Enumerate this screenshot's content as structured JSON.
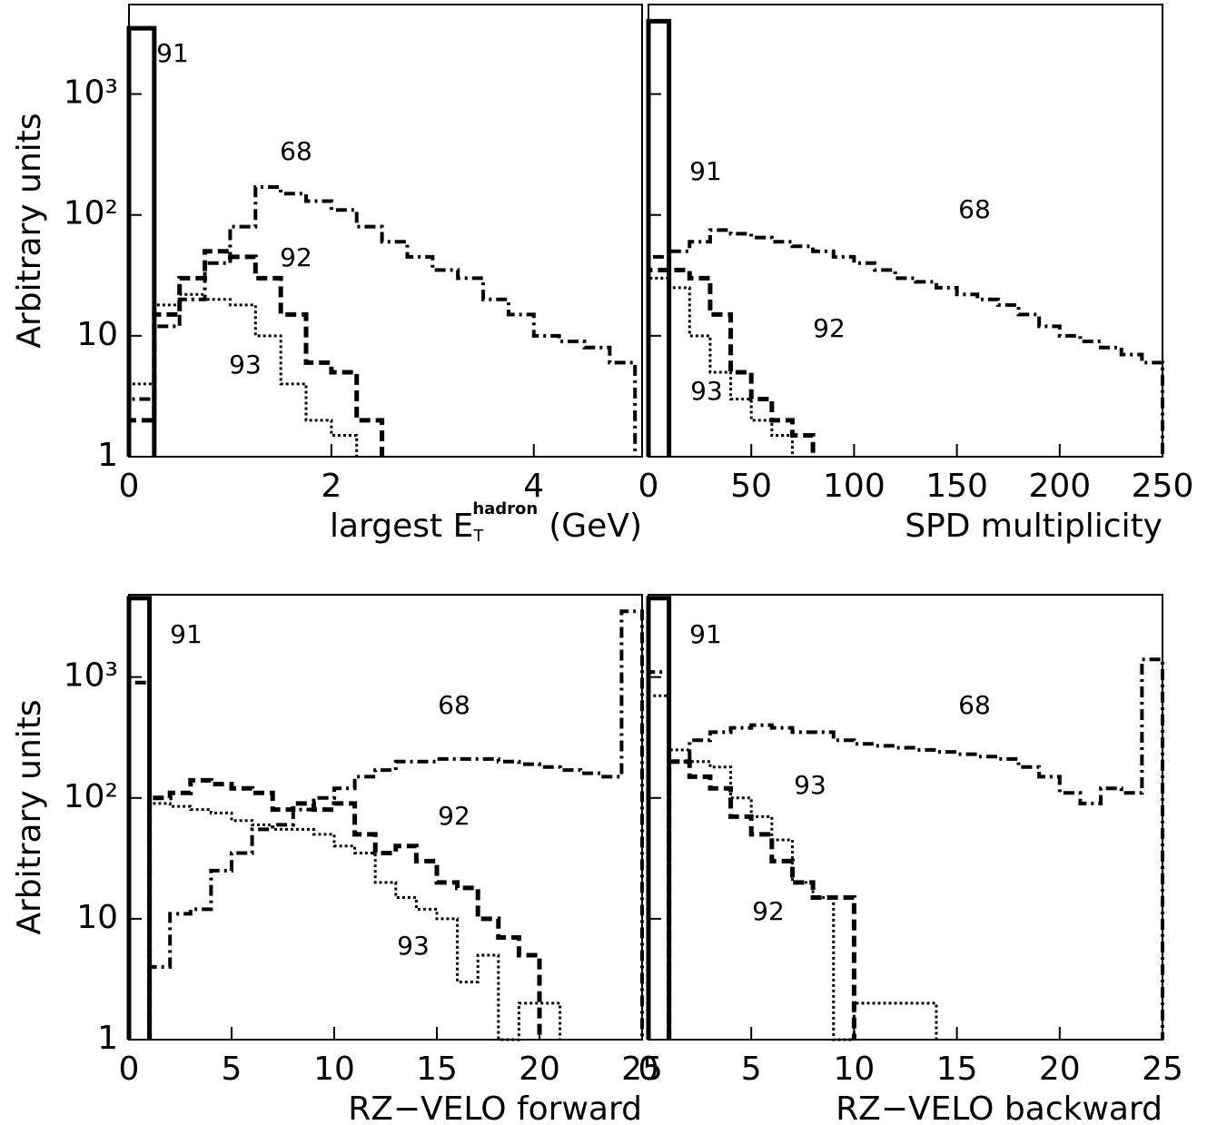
{
  "chart_data": [
    {
      "type": "histogram",
      "ylabel": "Arbitrary units",
      "xlabel": {
        "text": "largest E",
        "sub": "T",
        "sup": "hadron",
        "tail": "(GeV)"
      },
      "xlim": [
        0,
        5.07
      ],
      "xticks": [
        0,
        2,
        4
      ],
      "ylim": [
        1,
        5500
      ],
      "log_y": true,
      "ytick_labels": true,
      "yticks": [
        1,
        10,
        {
          "value": 100,
          "label": "10²"
        },
        {
          "value": 1000,
          "label": "10³"
        }
      ],
      "bins": [
        0,
        0.25,
        0.5,
        0.75,
        1,
        1.25,
        1.5,
        1.75,
        2,
        2.25,
        2.5,
        2.75,
        3,
        3.25,
        3.5,
        3.75,
        4,
        4.25,
        4.5,
        4.75,
        5
      ],
      "series": [
        {
          "name": "91",
          "style": "solid",
          "values": [
            3500,
            null,
            null,
            null,
            null,
            null,
            null,
            null,
            null,
            null,
            null,
            null,
            null,
            null,
            null,
            null,
            null,
            null,
            null,
            null
          ]
        },
        {
          "name": "68",
          "style": "dashdot",
          "values": [
            3,
            12,
            20,
            40,
            80,
            170,
            150,
            130,
            110,
            80,
            60,
            45,
            35,
            30,
            20,
            15,
            10,
            9,
            8,
            6
          ]
        },
        {
          "name": "92",
          "style": "dashed",
          "values": [
            2,
            15,
            30,
            50,
            45,
            30,
            15,
            6,
            5,
            2,
            null,
            null,
            null,
            null,
            null,
            null,
            null,
            null,
            null,
            null
          ]
        },
        {
          "name": "93",
          "style": "dotted",
          "values": [
            4,
            18,
            22,
            20,
            18,
            10,
            4,
            2,
            1.5,
            null,
            null,
            null,
            null,
            null,
            null,
            null,
            null,
            null,
            null,
            null
          ]
        }
      ]
    },
    {
      "type": "histogram",
      "xlabel": "SPD multiplicity",
      "xlim": [
        0,
        250
      ],
      "xticks": [
        0,
        50,
        100,
        150,
        200,
        250
      ],
      "ylim": [
        1,
        5500
      ],
      "log_y": true,
      "ytick_labels": false,
      "yticks": [
        1,
        10,
        100,
        1000
      ],
      "bins": [
        0,
        10,
        20,
        30,
        40,
        50,
        60,
        70,
        80,
        90,
        100,
        110,
        120,
        130,
        140,
        150,
        160,
        170,
        180,
        190,
        200,
        210,
        220,
        230,
        240,
        250
      ],
      "series": [
        {
          "name": "91",
          "style": "solid",
          "values": [
            4000,
            null,
            null,
            null,
            null,
            null,
            null,
            null,
            null,
            null,
            null,
            null,
            null,
            null,
            null,
            null,
            null,
            null,
            null,
            null,
            null,
            null,
            null,
            null,
            null
          ]
        },
        {
          "name": "68",
          "style": "dashdot",
          "values": [
            45,
            50,
            60,
            75,
            70,
            65,
            60,
            55,
            50,
            45,
            40,
            35,
            30,
            28,
            25,
            22,
            20,
            18,
            15,
            12,
            10,
            9,
            8,
            7,
            6
          ]
        },
        {
          "name": "92",
          "style": "dashed",
          "values": [
            35,
            35,
            30,
            15,
            5,
            3,
            2,
            1.5,
            null,
            null,
            null,
            null,
            null,
            null,
            null,
            null,
            null,
            null,
            null,
            null,
            null,
            null,
            null,
            null,
            null
          ]
        },
        {
          "name": "93",
          "style": "dotted",
          "values": [
            30,
            25,
            10,
            5,
            3,
            2,
            1.5,
            null,
            null,
            null,
            null,
            null,
            null,
            null,
            null,
            null,
            null,
            null,
            null,
            null,
            null,
            null,
            null,
            null,
            null
          ]
        }
      ]
    },
    {
      "type": "histogram",
      "ylabel": "Arbitrary units",
      "xlabel": "RZ−VELO forward",
      "xlim": [
        0,
        25
      ],
      "xticks": [
        0,
        5,
        10,
        15,
        20,
        25
      ],
      "ylim": [
        1,
        4800
      ],
      "log_y": true,
      "ytick_labels": true,
      "yticks": [
        1,
        10,
        {
          "value": 100,
          "label": "10²"
        },
        {
          "value": 1000,
          "label": "10³"
        }
      ],
      "bins": [
        0,
        1,
        2,
        3,
        4,
        5,
        6,
        7,
        8,
        9,
        10,
        11,
        12,
        13,
        14,
        15,
        16,
        17,
        18,
        19,
        20,
        21,
        22,
        23,
        24,
        25
      ],
      "series": [
        {
          "name": "91",
          "style": "solid",
          "values": [
            4500,
            null,
            null,
            null,
            null,
            null,
            null,
            null,
            null,
            null,
            null,
            null,
            null,
            null,
            null,
            null,
            null,
            null,
            null,
            null,
            null,
            null,
            null,
            null,
            null
          ]
        },
        {
          "name": "68",
          "style": "dashdot",
          "values": [
            900,
            4,
            11,
            12,
            25,
            35,
            55,
            60,
            80,
            100,
            120,
            150,
            170,
            200,
            200,
            210,
            210,
            210,
            200,
            190,
            180,
            170,
            160,
            150,
            3500
          ]
        },
        {
          "name": "92",
          "style": "dashed",
          "values": [
            null,
            100,
            110,
            140,
            130,
            120,
            110,
            80,
            90,
            80,
            90,
            50,
            35,
            40,
            30,
            20,
            18,
            10,
            7,
            5,
            null,
            null,
            null,
            null,
            null
          ]
        },
        {
          "name": "93",
          "style": "dotted",
          "values": [
            null,
            90,
            85,
            80,
            75,
            65,
            60,
            55,
            55,
            50,
            40,
            35,
            20,
            15,
            12,
            10,
            3,
            5,
            1,
            2,
            2,
            null,
            null,
            null,
            null
          ]
        }
      ]
    },
    {
      "type": "histogram",
      "xlabel": "RZ−VELO backward",
      "xlim": [
        0,
        25
      ],
      "xticks": [
        0,
        5,
        10,
        15,
        20,
        25
      ],
      "ylim": [
        1,
        4800
      ],
      "log_y": true,
      "ytick_labels": false,
      "yticks": [
        1,
        10,
        100,
        1000
      ],
      "bins": [
        0,
        1,
        2,
        3,
        4,
        5,
        6,
        7,
        8,
        9,
        10,
        11,
        12,
        13,
        14,
        15,
        16,
        17,
        18,
        19,
        20,
        21,
        22,
        23,
        24,
        25
      ],
      "series": [
        {
          "name": "91",
          "style": "solid",
          "values": [
            4500,
            null,
            null,
            null,
            null,
            null,
            null,
            null,
            null,
            null,
            null,
            null,
            null,
            null,
            null,
            null,
            null,
            null,
            null,
            null,
            null,
            null,
            null,
            null,
            null
          ]
        },
        {
          "name": "68",
          "style": "dashdot",
          "values": [
            1100,
            200,
            300,
            350,
            380,
            400,
            380,
            350,
            350,
            300,
            280,
            270,
            260,
            250,
            240,
            230,
            220,
            210,
            180,
            150,
            110,
            90,
            120,
            110,
            1400
          ]
        },
        {
          "name": "93",
          "style": "dotted",
          "values": [
            700,
            250,
            200,
            180,
            100,
            70,
            45,
            20,
            15,
            1,
            2,
            2,
            2,
            2,
            null,
            null,
            null,
            null,
            null,
            null,
            null,
            null,
            null,
            null,
            null
          ]
        },
        {
          "name": "92",
          "style": "dashed",
          "values": [
            null,
            200,
            150,
            120,
            70,
            50,
            30,
            20,
            15,
            15,
            null,
            null,
            null,
            null,
            null,
            null,
            null,
            null,
            null,
            null,
            null,
            null,
            null,
            null,
            null
          ]
        }
      ]
    }
  ]
}
